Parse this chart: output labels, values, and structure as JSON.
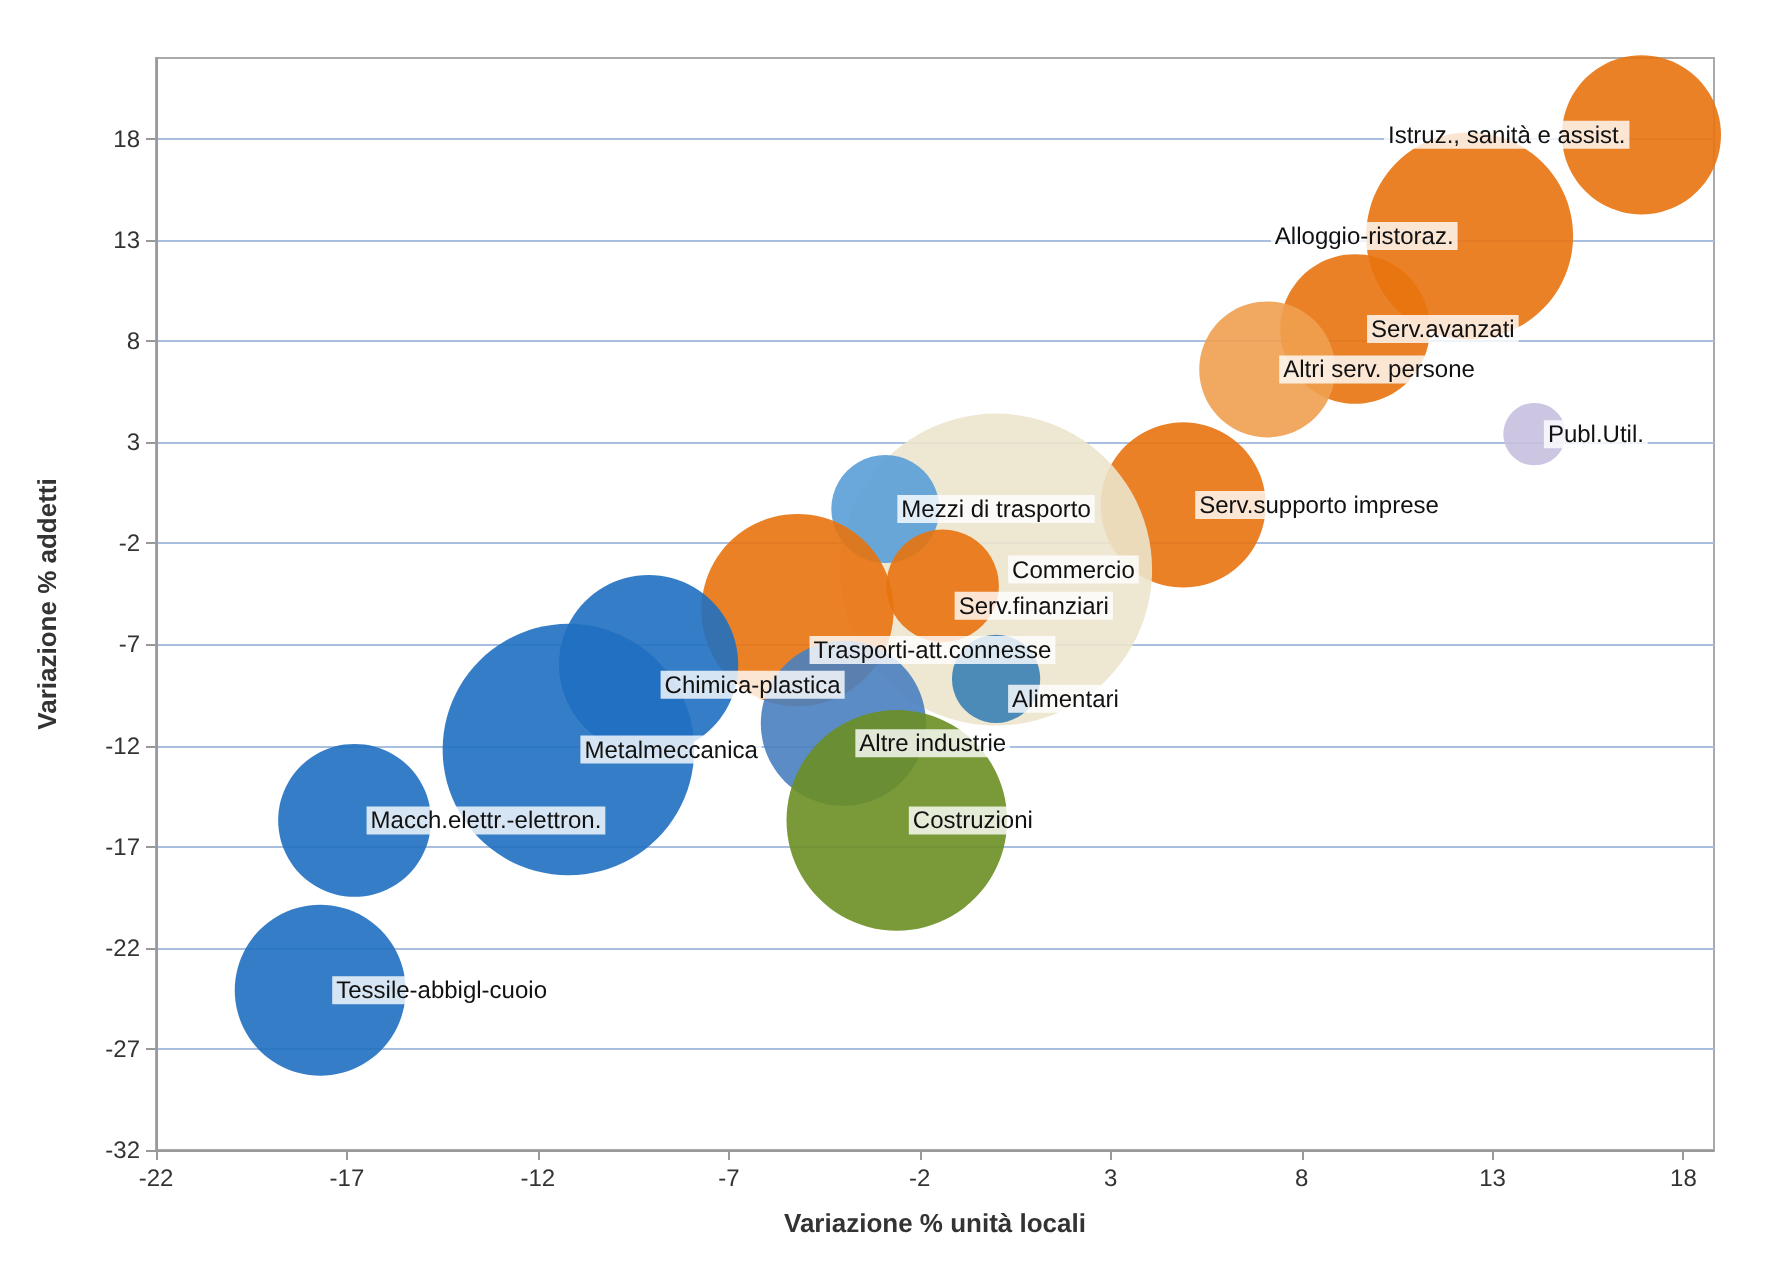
{
  "chart_data": {
    "type": "bubble",
    "xlabel": "Variazione % unità locali",
    "ylabel": "Variazione % addetti",
    "x": [
      16.9,
      12.4,
      9.4,
      7.1,
      14.1,
      4.9,
      0.0,
      -2.9,
      -1.4,
      -5.2,
      -9.1,
      0.0,
      -4.0,
      -11.2,
      -2.6,
      -16.8,
      -17.7
    ],
    "values": [
      18.2,
      13.2,
      8.6,
      6.6,
      3.4,
      -0.1,
      -3.3,
      -0.3,
      -4.1,
      -5.3,
      -8.0,
      -8.7,
      -10.9,
      -12.2,
      -15.7,
      -15.7,
      -24.1
    ],
    "sizes": [
      0.26,
      0.44,
      0.23,
      0.19,
      0.04,
      0.28,
      1,
      0.12,
      0.13,
      0.38,
      0.33,
      0.08,
      0.28,
      0.65,
      0.5,
      0.24,
      0.3
    ],
    "colors": [
      "#e8730e",
      "#e8730e",
      "#e8730e",
      "#f0a050",
      "#c8c0e0",
      "#e8730e",
      "#ece4cc",
      "#5a9ed8",
      "#e8730e",
      "#e8730e",
      "#1f6fc0",
      "#3a7fb5",
      "#4a7fc0",
      "#1f6fc0",
      "#6b8e23",
      "#1f6fc0",
      "#1f6fc0"
    ],
    "xlim": [
      -22,
      18.8
    ],
    "xticks": [
      -22,
      -17,
      -12,
      -7,
      -2,
      3,
      8,
      13,
      18
    ],
    "ylim": [
      -32,
      22
    ],
    "yticks": [
      -32,
      -27,
      -22,
      -17,
      -12,
      -7,
      -2,
      3,
      8,
      13,
      18
    ],
    "grid": "y",
    "annotations": [
      {
        "text": "Istruz., sanità e assist.",
        "x": 16.9,
        "y": 18.2
      },
      {
        "text": "Alloggio-ristoraz.",
        "x": 12.4,
        "y": 13.2
      },
      {
        "text": "Serv.avanzati",
        "x": 9.4,
        "y": 8.6
      },
      {
        "text": "Altri serv. persone",
        "x": 7.1,
        "y": 6.6
      },
      {
        "text": "Publ.Util.",
        "x": 14.1,
        "y": 3.4
      },
      {
        "text": "Serv.supporto imprese",
        "x": 4.9,
        "y": -0.1
      },
      {
        "text": "Commercio",
        "x": 0.0,
        "y": -3.3
      },
      {
        "text": "Mezzi di trasporto",
        "x": -2.9,
        "y": -0.3
      },
      {
        "text": "Serv.finanziari",
        "x": -1.4,
        "y": -4.1
      },
      {
        "text": "Trasporti-att.connesse",
        "x": -5.2,
        "y": -5.3
      },
      {
        "text": "Chimica-plastica",
        "x": -9.1,
        "y": -8.0
      },
      {
        "text": "Alimentari",
        "x": 0.0,
        "y": -8.7
      },
      {
        "text": "Altre industrie",
        "x": -4.0,
        "y": -10.9
      },
      {
        "text": "Metalmeccanica",
        "x": -11.2,
        "y": -12.2
      },
      {
        "text": "Costruzioni",
        "x": -2.6,
        "y": -15.7
      },
      {
        "text": "Macch.elettr.-elettron.",
        "x": -16.8,
        "y": -15.7
      },
      {
        "text": "Tessile-abbigl-cuoio",
        "x": -17.7,
        "y": -24.1
      }
    ]
  }
}
